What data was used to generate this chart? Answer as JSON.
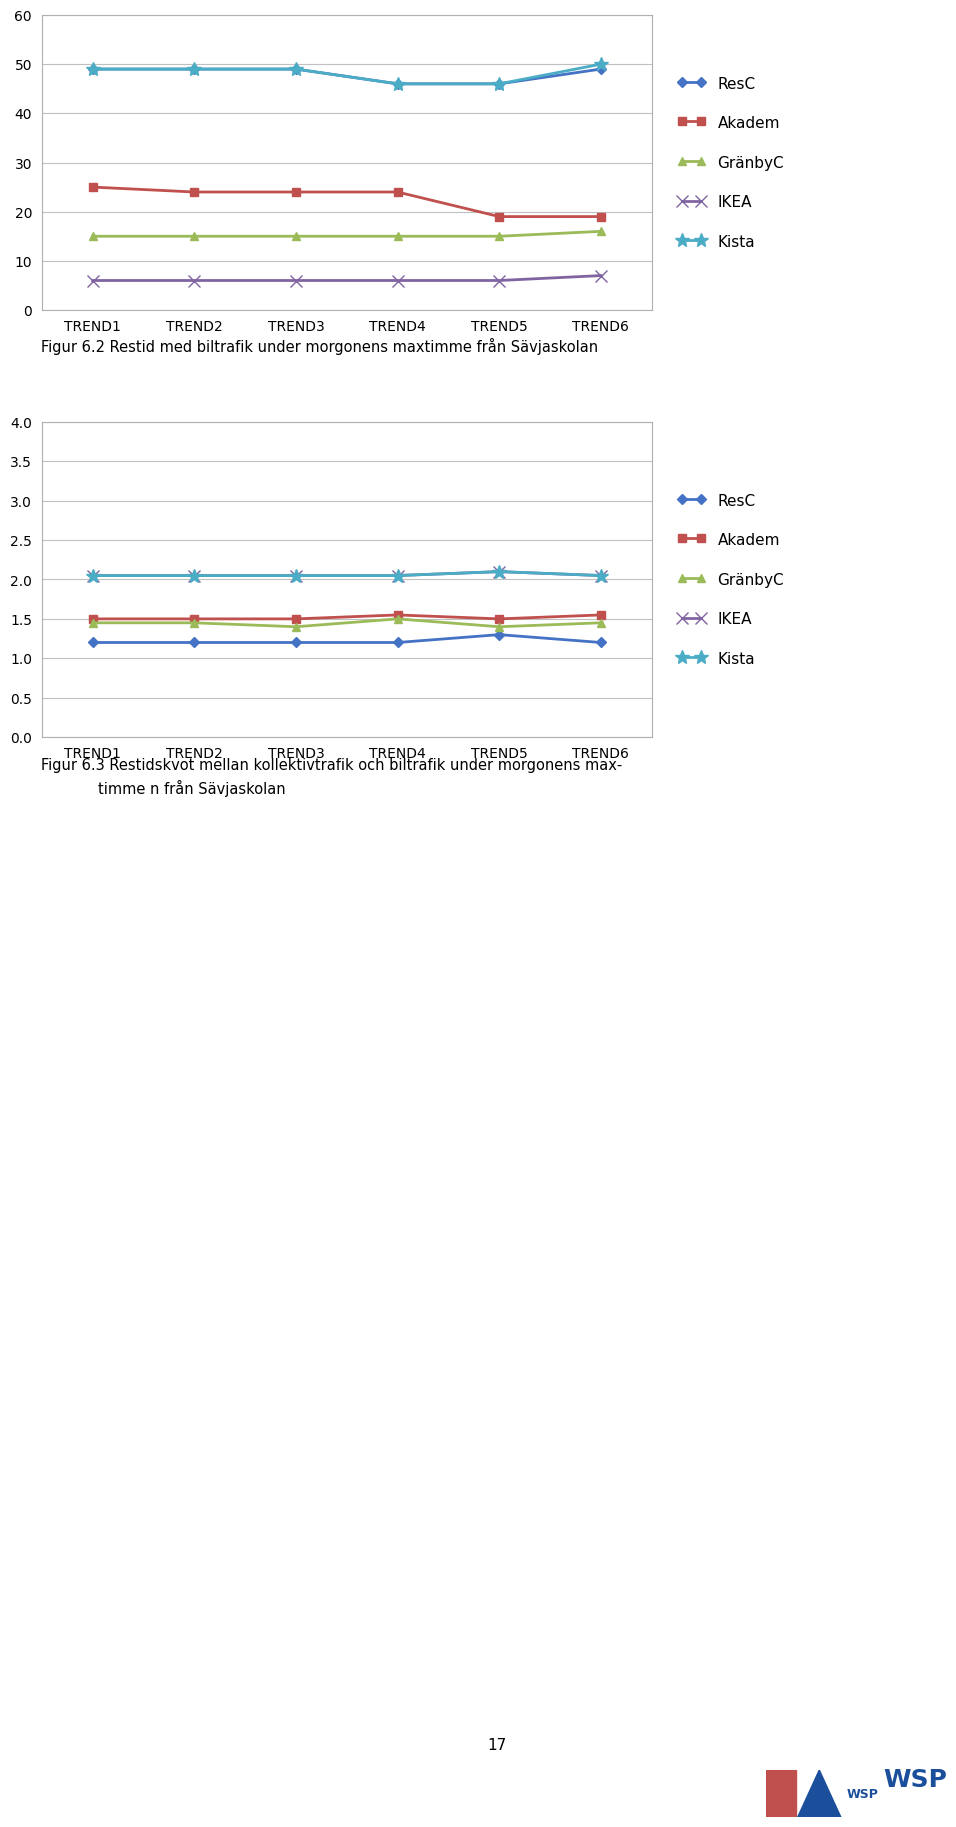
{
  "categories": [
    "TREND1",
    "TREND2",
    "TREND3",
    "TREND4",
    "TREND5",
    "TREND6"
  ],
  "chart1": {
    "ResC": [
      49,
      49,
      49,
      46,
      46,
      49
    ],
    "Akadem": [
      25,
      24,
      24,
      24,
      19,
      19
    ],
    "GränbyC": [
      15,
      15,
      15,
      15,
      15,
      16
    ],
    "IKEA": [
      6,
      6,
      6,
      6,
      6,
      7
    ],
    "Kista": [
      49,
      49,
      49,
      46,
      46,
      50
    ]
  },
  "chart1_ylim": [
    0,
    60
  ],
  "chart1_yticks": [
    0,
    10,
    20,
    30,
    40,
    50,
    60
  ],
  "chart2": {
    "ResC": [
      1.2,
      1.2,
      1.2,
      1.2,
      1.3,
      1.2
    ],
    "Akadem": [
      1.5,
      1.5,
      1.5,
      1.55,
      1.5,
      1.55
    ],
    "GränbyC": [
      1.45,
      1.45,
      1.4,
      1.5,
      1.4,
      1.45
    ],
    "IKEA": [
      2.05,
      2.05,
      2.05,
      2.05,
      2.1,
      2.05
    ],
    "Kista": [
      2.05,
      2.05,
      2.05,
      2.05,
      2.1,
      2.05
    ]
  },
  "chart2_ylim": [
    0.0,
    4.0
  ],
  "chart2_yticks": [
    0.0,
    0.5,
    1.0,
    1.5,
    2.0,
    2.5,
    3.0,
    3.5,
    4.0
  ],
  "colors": {
    "ResC": "#4472C4",
    "Akadem": "#C0504D",
    "GränbyC": "#9BBB59",
    "IKEA": "#8064A2",
    "Kista": "#4BACC6"
  },
  "series_order": [
    "ResC",
    "Akadem",
    "GränbyC",
    "IKEA",
    "Kista"
  ],
  "caption1": "Figur 6.2 Restid med biltrafik under morgonens maxtimme från Sävjaskolan",
  "caption2_line1": "Figur 6.3 Restidskvot mellan kollektivtrafik och biltrafik under morgonens max-",
  "caption2_line2": "timme n från Sävjaskolan",
  "page_number": "17",
  "background_color": "#ffffff",
  "grid_color": "#C0C0C0",
  "chart_border_color": "#B0B0B0"
}
